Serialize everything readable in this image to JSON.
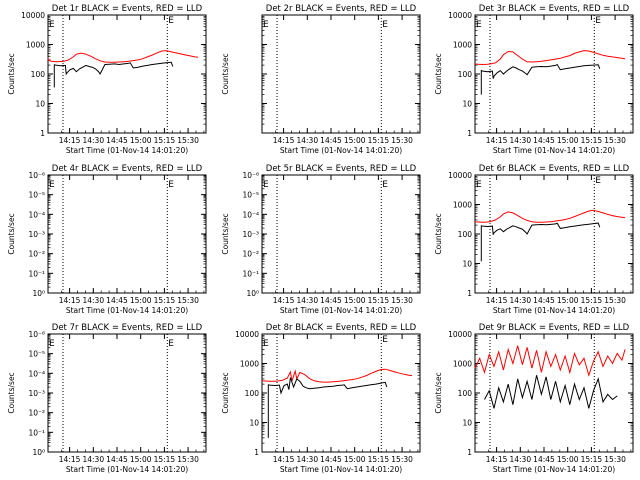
{
  "chart_data": [
    {
      "title": "Det 1r BLACK = Events, RED = LLD",
      "xlabel": "Start Time (01-Nov-14 14:01:20)",
      "ylabel": "Counts/sec",
      "yaxis": "log",
      "ylim": [
        1,
        10000
      ],
      "ytick_labels": [
        "1",
        "10",
        "100",
        "1000",
        "10000"
      ],
      "xtick_labels": [
        "14:15",
        "14:30",
        "14:45",
        "15:00",
        "15:15",
        "15:30"
      ],
      "type": "line",
      "has_data": true,
      "series": [
        {
          "color": "#ff0000",
          "x": [
            0,
            0.5,
            2,
            5,
            8,
            10,
            13,
            16,
            18,
            21,
            24,
            27,
            30,
            33,
            36,
            39,
            42,
            45,
            48,
            51,
            54,
            57,
            60,
            63,
            66,
            69,
            72,
            75,
            78,
            81,
            84,
            87,
            90,
            93,
            95
          ],
          "y": [
            350,
            290,
            270,
            260,
            265,
            270,
            300,
            380,
            470,
            510,
            470,
            400,
            330,
            280,
            255,
            250,
            252,
            255,
            262,
            270,
            285,
            300,
            330,
            380,
            440,
            520,
            600,
            620,
            560,
            520,
            480,
            440,
            410,
            380,
            370
          ]
        },
        {
          "color": "#000000",
          "x": [
            4,
            4,
            5,
            8,
            11,
            11.5,
            12,
            14,
            16,
            18,
            20,
            22,
            24,
            26,
            28,
            30,
            32,
            33,
            36,
            39,
            42,
            45,
            48,
            51,
            52,
            54,
            57,
            60,
            63,
            66,
            69,
            72,
            75,
            78,
            79
          ],
          "y": [
            35,
            205,
            200,
            190,
            195,
            100,
            110,
            140,
            155,
            120,
            150,
            170,
            195,
            180,
            170,
            150,
            120,
            100,
            210,
            215,
            220,
            210,
            220,
            230,
            240,
            160,
            170,
            185,
            195,
            210,
            220,
            230,
            240,
            250,
            180
          ]
        }
      ],
      "markers": [
        "E",
        "E"
      ]
    },
    {
      "title": "Det 2r BLACK = Events, RED = LLD",
      "xlabel": "Start Time (01-Nov-14 14:01:20)",
      "ylabel": "Counts/sec",
      "yaxis": "log",
      "ylim": [
        1,
        10000
      ],
      "ytick_labels": [],
      "xtick_labels": [
        "14:15",
        "14:30",
        "14:45",
        "15:00",
        "15:15",
        "15:30"
      ],
      "type": "line",
      "has_data": false,
      "series": [],
      "markers": [
        "E",
        "E"
      ]
    },
    {
      "title": "Det 3r BLACK = Events, RED = LLD",
      "xlabel": "Start Time (01-Nov-14 14:01:20)",
      "ylabel": "Counts/sec",
      "yaxis": "log",
      "ylim": [
        1,
        10000
      ],
      "ytick_labels": [
        "1",
        "10",
        "100",
        "1000",
        "10000"
      ],
      "xtick_labels": [
        "14:15",
        "14:30",
        "14:45",
        "15:00",
        "15:15",
        "15:30"
      ],
      "type": "line",
      "has_data": true,
      "series": [
        {
          "color": "#ff0000",
          "x": [
            0,
            2,
            5,
            8,
            10,
            13,
            16,
            18,
            21,
            24,
            27,
            30,
            33,
            36,
            39,
            42,
            45,
            48,
            51,
            54,
            57,
            60,
            63,
            66,
            69,
            72,
            75,
            78,
            81,
            84,
            87,
            90,
            93,
            95
          ],
          "y": [
            220,
            215,
            210,
            215,
            220,
            240,
            320,
            450,
            580,
            560,
            420,
            320,
            260,
            255,
            260,
            270,
            285,
            300,
            320,
            340,
            380,
            420,
            500,
            560,
            620,
            600,
            540,
            480,
            430,
            400,
            380,
            360,
            340,
            330
          ]
        },
        {
          "color": "#000000",
          "x": [
            4,
            4,
            5,
            8,
            11,
            11.5,
            12,
            14,
            16,
            18,
            20,
            22,
            24,
            26,
            28,
            30,
            32,
            33,
            36,
            39,
            42,
            45,
            48,
            51,
            52,
            54,
            57,
            60,
            63,
            66,
            69,
            72,
            75,
            78,
            79
          ],
          "y": [
            20,
            130,
            125,
            120,
            125,
            70,
            85,
            110,
            130,
            100,
            125,
            150,
            175,
            160,
            140,
            125,
            105,
            95,
            170,
            175,
            180,
            175,
            185,
            195,
            210,
            140,
            150,
            160,
            170,
            180,
            190,
            195,
            200,
            205,
            150
          ]
        }
      ],
      "markers": [
        "E",
        "E"
      ]
    },
    {
      "title": "Det 4r BLACK = Events, RED = LLD",
      "xlabel": "Start Time (01-Nov-14 14:01:20)",
      "ylabel": "Counts/sec",
      "yaxis": "log",
      "ylim": [
        1,
        1000000
      ],
      "ytick_labels": [
        "10⁰",
        "10⁻¹",
        "10⁻²",
        "10⁻³",
        "10⁻⁴",
        "10⁻⁵",
        "10⁻⁶"
      ],
      "xtick_labels": [
        "14:15",
        "14:30",
        "14:45",
        "15:00",
        "15:15",
        "15:30"
      ],
      "type": "line",
      "has_data": false,
      "series": [],
      "markers": [
        "E",
        "E"
      ]
    },
    {
      "title": "Det 5r BLACK = Events, RED = LLD",
      "xlabel": "Start Time (01-Nov-14 14:01:20)",
      "ylabel": "Counts/sec",
      "yaxis": "log",
      "ylim": [
        1,
        1000000
      ],
      "ytick_labels": [
        "10⁰",
        "10⁻¹",
        "10⁻²",
        "10⁻³",
        "10⁻⁴",
        "10⁻⁵",
        "10⁻⁶"
      ],
      "xtick_labels": [
        "14:15",
        "14:30",
        "14:45",
        "15:00",
        "15:15",
        "15:30"
      ],
      "type": "line",
      "has_data": false,
      "series": [],
      "markers": [
        "E",
        "E"
      ]
    },
    {
      "title": "Det 6r BLACK = Events, RED = LLD",
      "xlabel": "Start Time (01-Nov-14 14:01:20)",
      "ylabel": "Counts/sec",
      "yaxis": "log",
      "ylim": [
        1,
        10000
      ],
      "ytick_labels": [
        "1",
        "10",
        "100",
        "1000",
        "10000"
      ],
      "xtick_labels": [
        "14:15",
        "14:30",
        "14:45",
        "15:00",
        "15:15",
        "15:30"
      ],
      "type": "line",
      "has_data": true,
      "series": [
        {
          "color": "#ff0000",
          "x": [
            0,
            2,
            5,
            8,
            10,
            13,
            16,
            18,
            21,
            24,
            27,
            30,
            33,
            36,
            39,
            42,
            45,
            48,
            51,
            54,
            57,
            60,
            63,
            66,
            69,
            72,
            75,
            78,
            81,
            84,
            87,
            90,
            93,
            95
          ],
          "y": [
            260,
            255,
            250,
            255,
            265,
            300,
            380,
            480,
            560,
            520,
            420,
            340,
            290,
            260,
            250,
            250,
            255,
            262,
            275,
            290,
            310,
            340,
            390,
            450,
            520,
            600,
            640,
            580,
            520,
            460,
            420,
            390,
            370,
            360
          ]
        },
        {
          "color": "#000000",
          "x": [
            4,
            4,
            5,
            8,
            11,
            11.5,
            12,
            14,
            16,
            18,
            20,
            22,
            24,
            26,
            28,
            30,
            32,
            33,
            36,
            39,
            42,
            45,
            48,
            51,
            52,
            54,
            57,
            60,
            63,
            66,
            69,
            72,
            75,
            78,
            79
          ],
          "y": [
            12,
            190,
            185,
            180,
            185,
            95,
            110,
            135,
            150,
            120,
            145,
            165,
            190,
            175,
            160,
            145,
            115,
            100,
            200,
            205,
            210,
            205,
            212,
            220,
            230,
            155,
            165,
            175,
            185,
            195,
            205,
            215,
            225,
            235,
            170
          ]
        }
      ],
      "markers": [
        "E",
        "E"
      ]
    },
    {
      "title": "Det 7r BLACK = Events, RED = LLD",
      "xlabel": "Start Time (01-Nov-14 14:01:20)",
      "ylabel": "Counts/sec",
      "yaxis": "log",
      "ylim": [
        1,
        1000000
      ],
      "ytick_labels": [
        "10⁰",
        "10⁻¹",
        "10⁻²",
        "10⁻³",
        "10⁻⁴",
        "10⁻⁵",
        "10⁻⁶"
      ],
      "xtick_labels": [
        "14:15",
        "14:30",
        "14:45",
        "15:00",
        "15:15",
        "15:30"
      ],
      "type": "line",
      "has_data": false,
      "series": [],
      "markers": [
        "E",
        "E"
      ]
    },
    {
      "title": "Det 8r BLACK = Events, RED = LLD",
      "xlabel": "Start Time (01-Nov-14 14:01:20)",
      "ylabel": "Counts/sec",
      "yaxis": "log",
      "ylim": [
        1,
        10000
      ],
      "ytick_labels": [
        "1",
        "10",
        "100",
        "1000",
        "10000"
      ],
      "xtick_labels": [
        "14:15",
        "14:30",
        "14:45",
        "15:00",
        "15:15",
        "15:30"
      ],
      "type": "line",
      "has_data": true,
      "series": [
        {
          "color": "#ff0000",
          "x": [
            0,
            2,
            5,
            8,
            10,
            13,
            16,
            18,
            19,
            21,
            22,
            24,
            27,
            30,
            33,
            36,
            39,
            42,
            45,
            48,
            51,
            54,
            57,
            60,
            63,
            66,
            69,
            72,
            75,
            78,
            81,
            84,
            87,
            90,
            93,
            95
          ],
          "y": [
            260,
            255,
            250,
            250,
            255,
            270,
            320,
            520,
            260,
            550,
            300,
            500,
            420,
            310,
            260,
            240,
            235,
            235,
            240,
            248,
            258,
            270,
            285,
            305,
            340,
            390,
            460,
            540,
            620,
            640,
            580,
            520,
            470,
            430,
            400,
            390
          ]
        },
        {
          "color": "#000000",
          "x": [
            4,
            4,
            5,
            8,
            11,
            12,
            14,
            16,
            17,
            18,
            20,
            22,
            24,
            26,
            28,
            30,
            33,
            36,
            39,
            42,
            45,
            48,
            51,
            52,
            54,
            57,
            60,
            63,
            66,
            69,
            72,
            75,
            78,
            79
          ],
          "y": [
            3,
            190,
            185,
            180,
            185,
            100,
            180,
            200,
            130,
            330,
            160,
            300,
            250,
            170,
            150,
            140,
            145,
            150,
            160,
            165,
            170,
            180,
            185,
            190,
            140,
            150,
            160,
            170,
            180,
            190,
            200,
            215,
            230,
            160
          ]
        }
      ],
      "markers": [
        "E",
        "E"
      ]
    },
    {
      "title": "Det 9r BLACK = Events, RED = LLD",
      "xlabel": "Start Time (01-Nov-14 14:01:20)",
      "ylabel": "Counts/sec",
      "yaxis": "log",
      "ylim": [
        1,
        10000
      ],
      "ytick_labels": [
        "1",
        "10",
        "100",
        "1000",
        "10000"
      ],
      "xtick_labels": [
        "14:15",
        "14:30",
        "14:45",
        "15:00",
        "15:15",
        "15:30"
      ],
      "type": "line",
      "has_data": true,
      "series": [
        {
          "color": "#ff0000",
          "x": [
            0,
            3,
            6,
            9,
            12,
            15,
            18,
            21,
            24,
            27,
            30,
            33,
            36,
            39,
            42,
            45,
            48,
            51,
            54,
            57,
            60,
            63,
            66,
            69,
            72,
            75,
            78,
            81,
            84,
            87,
            90,
            93,
            95
          ],
          "y": [
            700,
            1500,
            500,
            2000,
            800,
            2500,
            600,
            3000,
            1000,
            4000,
            900,
            3500,
            700,
            2800,
            500,
            2500,
            800,
            2000,
            600,
            1800,
            500,
            2200,
            900,
            1500,
            400,
            1200,
            2500,
            800,
            1800,
            1000,
            2200,
            1300,
            3000
          ]
        },
        {
          "color": "#000000",
          "x": [
            6,
            9,
            12,
            15,
            18,
            21,
            24,
            27,
            30,
            33,
            36,
            39,
            42,
            45,
            48,
            51,
            54,
            57,
            60,
            63,
            66,
            69,
            72,
            75,
            78,
            81,
            84,
            87,
            90
          ],
          "y": [
            60,
            120,
            30,
            150,
            50,
            200,
            40,
            300,
            70,
            250,
            60,
            400,
            90,
            350,
            60,
            250,
            50,
            180,
            40,
            200,
            60,
            150,
            30,
            120,
            300,
            50,
            90,
            60,
            80
          ]
        }
      ],
      "markers": []
    }
  ]
}
